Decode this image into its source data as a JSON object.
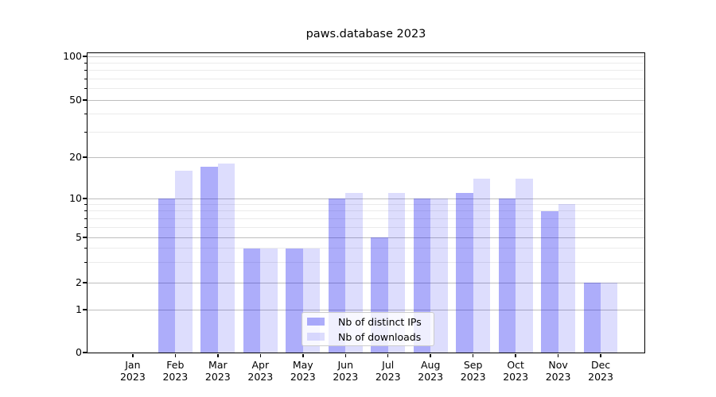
{
  "title": "paws.database 2023",
  "chart_data": {
    "type": "bar",
    "categories": [
      "Jan 2023",
      "Feb 2023",
      "Mar 2023",
      "Apr 2023",
      "May 2023",
      "Jun 2023",
      "Jul 2023",
      "Aug 2023",
      "Sep 2023",
      "Oct 2023",
      "Nov 2023",
      "Dec 2023"
    ],
    "series": [
      {
        "name": "Nb of distinct IPs",
        "color": "rgba(16,16,240,0.34)",
        "solid_color": "#aaaaf6",
        "values": [
          0,
          10,
          17,
          4,
          4,
          10,
          5,
          10,
          11,
          10,
          8,
          2
        ]
      },
      {
        "name": "Nb of downloads",
        "color": "rgba(16,16,240,0.14)",
        "solid_color": "#dcdcfa",
        "values": [
          0,
          16,
          18,
          4,
          4,
          11,
          11,
          10,
          14,
          14,
          9,
          2
        ]
      }
    ],
    "yscale": "asinh",
    "ylim": [
      0,
      100
    ],
    "yticks_major": [
      0,
      1,
      2,
      5,
      10,
      20,
      50,
      100
    ],
    "yticks_minor": [
      3,
      4,
      6,
      7,
      8,
      9,
      30,
      40,
      60,
      70,
      80,
      90
    ],
    "xlabel": "",
    "ylabel": "",
    "grid": "on",
    "legend_position": "lower center",
    "colors": {
      "axis": "#000000",
      "grid_major": "#bdbdbd",
      "grid_minor": "#ebebeb",
      "legend_border": "#cccccc",
      "legend_bg": "rgba(255,255,255,0.8)"
    }
  }
}
